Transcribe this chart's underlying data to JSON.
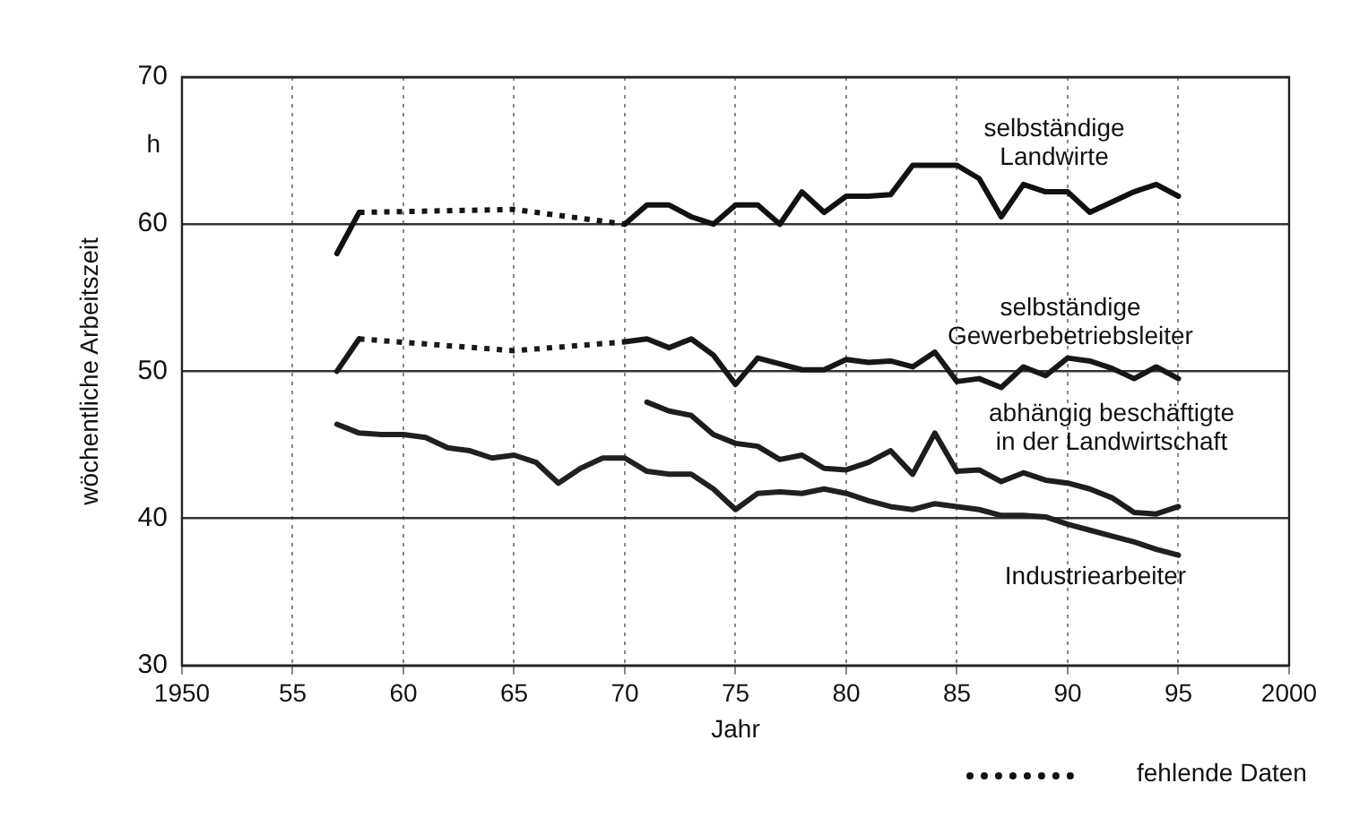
{
  "chart_data": {
    "type": "line",
    "xlabel": "Jahr",
    "ylabel": "wöchentliche Arbeitszeit",
    "annotations": [
      "h",
      "fehlende Daten"
    ],
    "xlim": [
      1950,
      2000
    ],
    "xticks": [
      1950,
      {
        "value": 1955,
        "label": "55"
      },
      {
        "value": 1960,
        "label": "60"
      },
      {
        "value": 1965,
        "label": "65"
      },
      {
        "value": 1970,
        "label": "70"
      },
      {
        "value": 1975,
        "label": "75"
      },
      {
        "value": 1980,
        "label": "80"
      },
      {
        "value": 1985,
        "label": "85"
      },
      {
        "value": 1990,
        "label": "90"
      },
      {
        "value": 1995,
        "label": "95"
      },
      2000
    ],
    "ylim": [
      30,
      70
    ],
    "yticks": [
      30,
      40,
      50,
      60,
      70
    ],
    "grid": true,
    "legend": false,
    "marker": "none",
    "line_style": "solid",
    "series": [
      {
        "name": "selbständige Landwirte",
        "color": "#111111",
        "x": [
          1957,
          1958,
          1964,
          1970,
          1971,
          1972,
          1973,
          1974,
          1975,
          1976,
          1977,
          1978,
          1979,
          1980,
          1981,
          1982,
          1983,
          1984,
          1985,
          1986,
          1987,
          1988,
          1989,
          1990,
          1991,
          1992,
          1993,
          1994,
          1995
        ],
        "values": [
          58.0,
          60.8,
          null,
          60.0,
          61.3,
          61.3,
          60.5,
          60.0,
          61.3,
          61.3,
          60.0,
          62.2,
          60.8,
          61.9,
          61.9,
          62.0,
          64.0,
          64.0,
          64.0,
          63.1,
          60.5,
          62.7,
          62.2,
          62.2,
          60.8,
          61.5,
          62.2,
          62.7,
          61.9
        ]
      },
      {
        "color": "#141414",
        "line_style": "dotted",
        "x": [
          1958,
          1965,
          1970
        ],
        "values": [
          60.8,
          61.0,
          60.0
        ]
      },
      {
        "name": "selbständige Gewerbebetriebsleiter",
        "color": "#171717",
        "x": [
          1957,
          1958,
          1964,
          1970,
          1971,
          1972,
          1973,
          1974,
          1975,
          1976,
          1977,
          1978,
          1979,
          1980,
          1981,
          1982,
          1983,
          1984,
          1985,
          1986,
          1987,
          1988,
          1989,
          1990,
          1991,
          1992,
          1993,
          1994,
          1995
        ],
        "values": [
          50.0,
          52.2,
          null,
          52.0,
          52.2,
          51.6,
          52.2,
          51.1,
          49.1,
          50.9,
          50.5,
          50.1,
          50.1,
          50.8,
          50.6,
          50.7,
          50.3,
          51.3,
          49.3,
          49.5,
          48.9,
          50.3,
          49.7,
          50.9,
          50.7,
          50.2,
          49.5,
          50.3,
          49.5
        ]
      },
      {
        "color": "#1a1a1a",
        "line_style": "dotted",
        "x": [
          1958,
          1965,
          1970
        ],
        "values": [
          52.2,
          51.4,
          52.0
        ]
      },
      {
        "name": "abhängig beschäftigte in der Landwirtschaft",
        "color": "#1d1d1d",
        "x": [
          1971,
          1972,
          1973,
          1974,
          1975,
          1976,
          1977,
          1978,
          1979,
          1980,
          1981,
          1982,
          1983,
          1984,
          1985,
          1986,
          1987,
          1988,
          1989,
          1990,
          1991,
          1992,
          1993,
          1994,
          1995
        ],
        "values": [
          47.9,
          47.3,
          47.0,
          45.7,
          45.1,
          44.9,
          44.0,
          44.3,
          43.4,
          43.3,
          43.8,
          44.6,
          43.0,
          45.8,
          43.2,
          43.3,
          42.5,
          43.1,
          42.6,
          42.4,
          42.0,
          41.4,
          40.4,
          40.3,
          40.8
        ]
      },
      {
        "name": "Industriearbeiter",
        "color": "#202020",
        "x": [
          1957,
          1958,
          1959,
          1960,
          1961,
          1962,
          1963,
          1964,
          1965,
          1966,
          1967,
          1968,
          1969,
          1970,
          1971,
          1972,
          1973,
          1974,
          1975,
          1976,
          1977,
          1978,
          1979,
          1980,
          1981,
          1982,
          1983,
          1984,
          1985,
          1986,
          1987,
          1988,
          1989,
          1990,
          1991,
          1992,
          1993,
          1994,
          1995
        ],
        "values": [
          46.4,
          45.8,
          45.7,
          45.7,
          45.5,
          44.8,
          44.6,
          44.1,
          44.3,
          43.8,
          42.4,
          43.4,
          44.1,
          44.1,
          43.2,
          43.0,
          43.0,
          42.0,
          40.6,
          41.7,
          41.8,
          41.7,
          42.0,
          41.7,
          41.2,
          40.8,
          40.6,
          41.0,
          40.8,
          40.6,
          40.2,
          40.2,
          40.1,
          39.6,
          39.2,
          38.8,
          38.4,
          37.9,
          37.5
        ]
      }
    ]
  }
}
